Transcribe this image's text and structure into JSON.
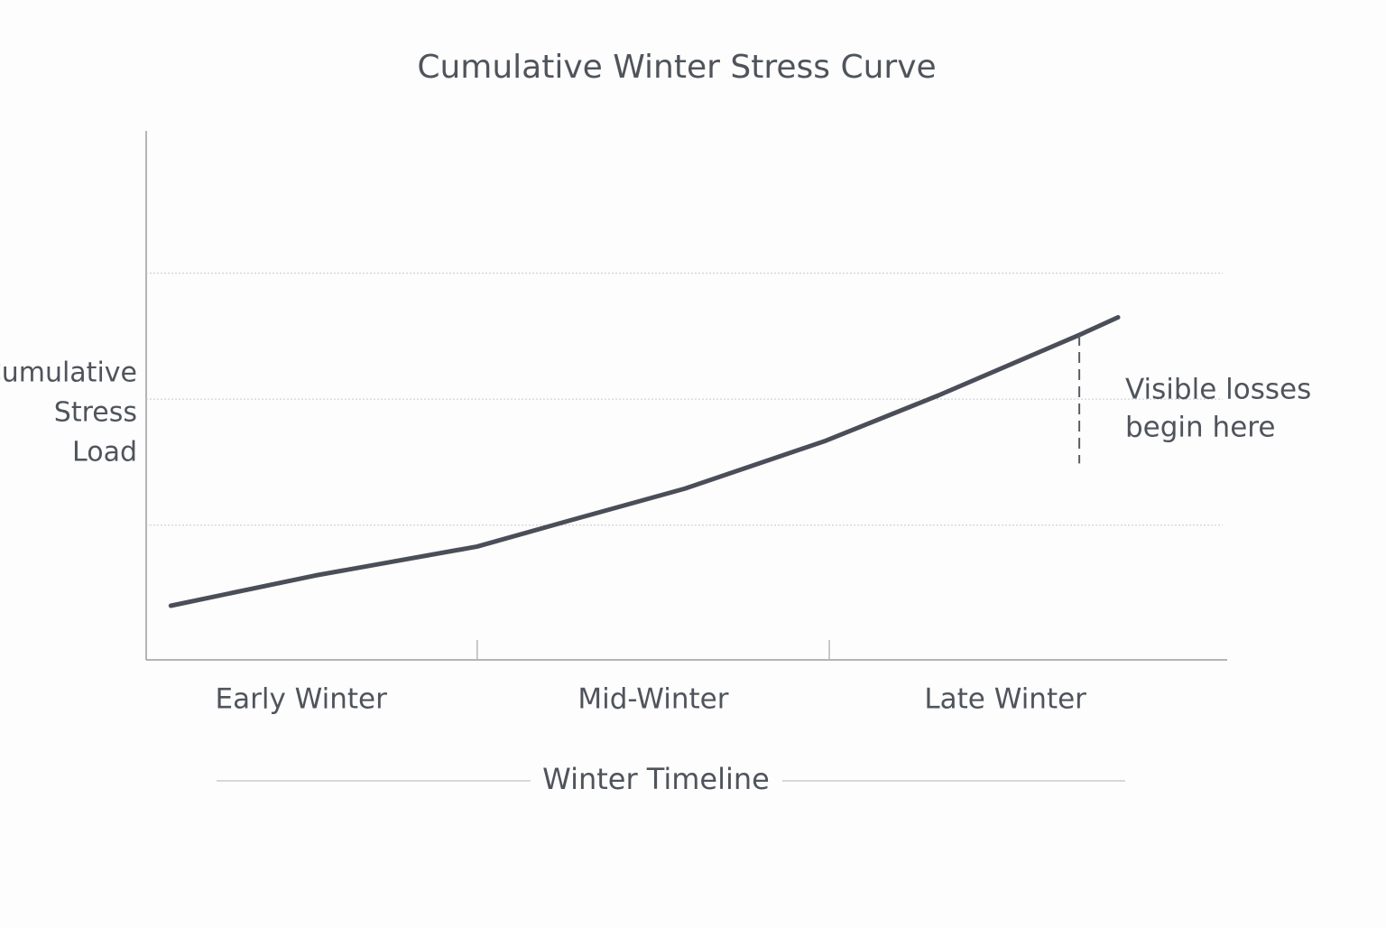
{
  "chart_data": {
    "type": "line",
    "title": "Cumulative Winter Stress Curve",
    "x_label": "Winter Timeline",
    "y_label_lines": [
      "Cumulative",
      "Stress",
      "Load"
    ],
    "x": [
      0.13,
      0.54,
      1.0,
      1.28,
      1.59,
      1.99,
      2.31,
      2.71,
      2.82
    ],
    "values": [
      0.36,
      0.6,
      0.83,
      1.05,
      1.29,
      1.67,
      2.03,
      2.51,
      2.65
    ],
    "color": "#4a4e58",
    "xlim": [
      0.06,
      3.13
    ],
    "ylim": [
      -0.07,
      4.13
    ],
    "xticks": [
      {
        "value": 0.5,
        "label": "Early Winter"
      },
      {
        "value": 1.5,
        "label": "Mid-Winter"
      },
      {
        "value": 2.5,
        "label": "Late Winter"
      }
    ],
    "x_dividers": [
      1,
      2
    ],
    "ygrid": [
      1,
      2,
      3
    ],
    "annotation": {
      "text_lines": [
        "Visible losses",
        "begin here"
      ],
      "x": 2.71,
      "y_top": 2.51,
      "y_bottom": 1.49
    }
  }
}
